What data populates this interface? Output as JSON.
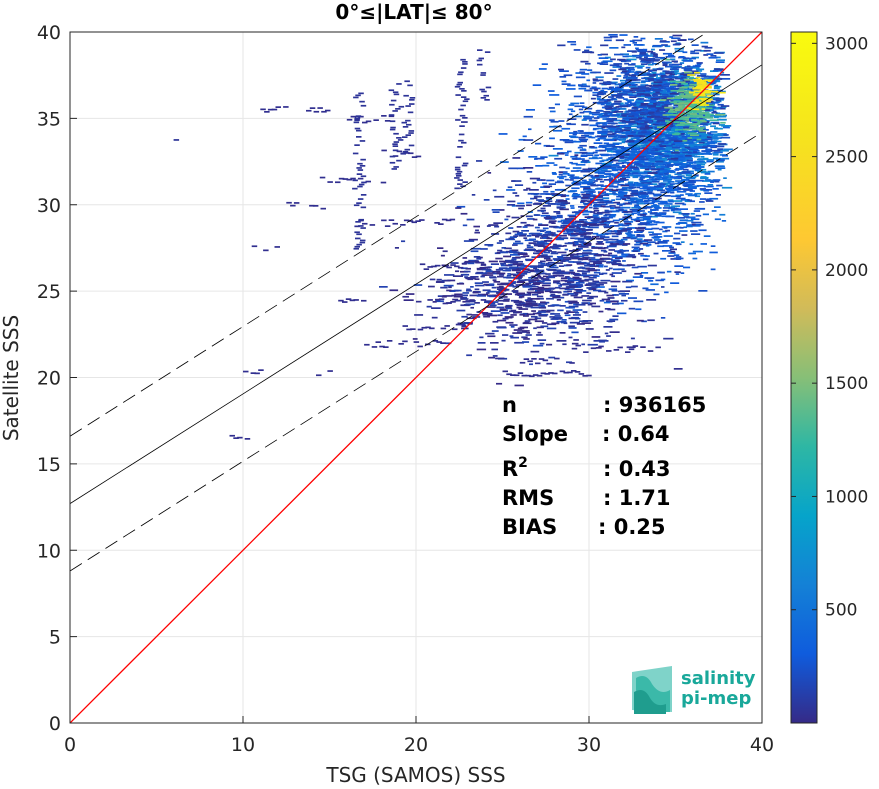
{
  "chart_data": {
    "type": "heatmap",
    "title": "0°≤|LAT|≤ 80°",
    "xlabel": "TSG (SAMOS) SSS",
    "ylabel": "Satellite SSS",
    "xlim": [
      0,
      40
    ],
    "ylim": [
      0,
      40
    ],
    "x_ticks": [
      "0",
      "10",
      "20",
      "30",
      "40"
    ],
    "y_ticks": [
      "0",
      "5",
      "10",
      "15",
      "20",
      "25",
      "30",
      "35",
      "40"
    ],
    "grid": true,
    "colorbar": {
      "range": [
        0,
        3050
      ],
      "ticks": [
        "500",
        "1000",
        "1500",
        "2000",
        "2500",
        "3000"
      ],
      "colormap": "parula"
    },
    "lines": [
      {
        "kind": "identity",
        "color": "#ff0000",
        "style": "solid",
        "points": [
          [
            0,
            0
          ],
          [
            40,
            40
          ]
        ]
      },
      {
        "kind": "regression",
        "color": "#000000",
        "style": "solid",
        "points": [
          [
            0,
            12.7
          ],
          [
            40,
            38.1
          ]
        ]
      },
      {
        "kind": "regression-plus-band",
        "color": "#000000",
        "style": "dashed",
        "points": [
          [
            0,
            16.6
          ],
          [
            40,
            42.0
          ]
        ]
      },
      {
        "kind": "regression-minus-band",
        "color": "#000000",
        "style": "dashed",
        "points": [
          [
            0,
            8.8
          ],
          [
            40,
            34.2
          ]
        ]
      }
    ],
    "density_clusters": [
      {
        "x": 34.5,
        "y": 34.5,
        "sx": 1.7,
        "sy": 1.9,
        "n": 1400,
        "level": 0.2
      },
      {
        "x": 32.5,
        "y": 32.0,
        "sx": 2.6,
        "sy": 2.8,
        "n": 1400,
        "level": 0.1
      },
      {
        "x": 33.5,
        "y": 36.5,
        "sx": 2.2,
        "sy": 1.8,
        "n": 700,
        "level": 0.06
      },
      {
        "x": 28.5,
        "y": 27.5,
        "sx": 2.5,
        "sy": 2.3,
        "n": 800,
        "level": 0.04
      },
      {
        "x": 25.5,
        "y": 25.0,
        "sx": 2.6,
        "sy": 1.6,
        "n": 500,
        "level": 0.02
      },
      {
        "x": 35.6,
        "y": 35.6,
        "sx": 0.6,
        "sy": 0.8,
        "n": 220,
        "level": 0.45
      },
      {
        "x": 36.3,
        "y": 36.5,
        "sx": 0.3,
        "sy": 0.5,
        "n": 60,
        "level": 0.85
      }
    ],
    "sparse_streaks": [
      {
        "x0": 11,
        "x1": 15,
        "y": 35.6
      },
      {
        "x0": 16,
        "x1": 19,
        "y": 35.0
      },
      {
        "x0": 18,
        "x1": 20,
        "y": 33.0
      },
      {
        "x0": 14,
        "x1": 18,
        "y": 31.5
      },
      {
        "x0": 12.5,
        "x1": 14.5,
        "y": 30.0
      },
      {
        "x0": 16,
        "x1": 22,
        "y": 29.0
      },
      {
        "x0": 10.5,
        "x1": 12,
        "y": 27.5
      },
      {
        "x0": 20,
        "x1": 24,
        "y": 26.5
      },
      {
        "x0": 20,
        "x1": 24,
        "y": 24.5
      },
      {
        "x0": 19,
        "x1": 23,
        "y": 23.0
      },
      {
        "x0": 17,
        "x1": 22,
        "y": 22.0
      },
      {
        "x0": 26,
        "x1": 29,
        "y": 21.0
      },
      {
        "x0": 25,
        "x1": 30,
        "y": 20.3
      },
      {
        "x0": 14,
        "x1": 16,
        "y": 20.3
      },
      {
        "x0": 9,
        "x1": 10.3,
        "y": 16.5
      },
      {
        "x0": 10,
        "x1": 11,
        "y": 20.3
      },
      {
        "x0": 29,
        "x1": 34,
        "y": 21.7
      },
      {
        "x0": 15.5,
        "x1": 17,
        "y": 24.5
      }
    ],
    "sparse_columns": [
      {
        "x": 16.6,
        "y0": 27.5,
        "y1": 36.5
      },
      {
        "x": 18.7,
        "y0": 32.0,
        "y1": 37.5
      },
      {
        "x": 19.4,
        "y0": 33.0,
        "y1": 37.5
      },
      {
        "x": 22.5,
        "y0": 31.0,
        "y1": 38.5
      },
      {
        "x": 23.8,
        "y0": 36.0,
        "y1": 39.0
      },
      {
        "x": 5.8,
        "y0": 33.8,
        "y1": 33.9
      }
    ],
    "stats": {
      "n": {
        "label": "n",
        "value": ": 936165"
      },
      "slope": {
        "label": "Slope",
        "value": ": 0.64"
      },
      "r2": {
        "label": "R",
        "sup": "2",
        "value": ": 0.43"
      },
      "rms": {
        "label": "RMS",
        "value": ": 1.71"
      },
      "bias": {
        "label": "BIAS",
        "value": ": 0.25"
      }
    }
  },
  "logo": {
    "line1": "salinity",
    "line2": "pi-mep",
    "color": "#19a89a"
  }
}
